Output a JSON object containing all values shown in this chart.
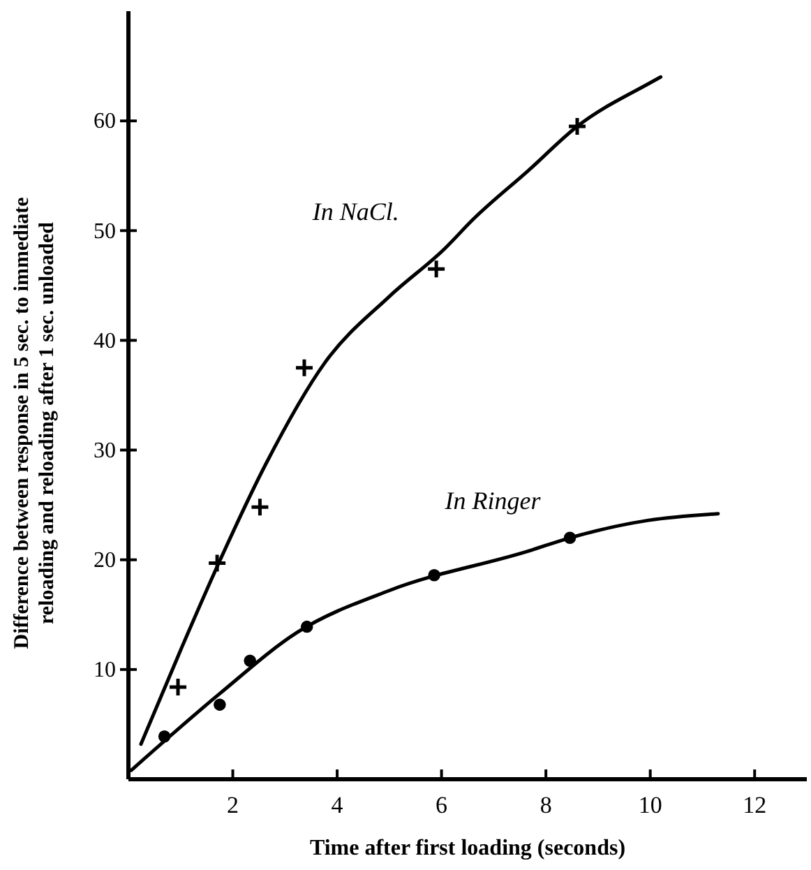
{
  "chart_data": {
    "type": "line",
    "xlabel": "Time after first loading (seconds)",
    "ylabel": "Difference between response in 5 sec. to immediate\nreloading and reloading after 1 sec. unloaded",
    "xlim": [
      0,
      13
    ],
    "ylim": [
      0,
      70
    ],
    "xticks": [
      2,
      4,
      6,
      8,
      10,
      12
    ],
    "yticks": [
      10,
      20,
      30,
      40,
      50,
      60
    ],
    "grid": false,
    "series": [
      {
        "name": "In NaCl.",
        "color": "#000000",
        "marker": "none",
        "x": [
          0.24,
          1.03,
          1.75,
          2.63,
          3.77,
          5.0,
          6.07,
          6.6,
          7.67,
          8.6,
          9.97,
          10.2
        ],
        "values": [
          3.2,
          12.1,
          19.9,
          28.7,
          38,
          44,
          48.4,
          51,
          55.5,
          59.5,
          63.4,
          64
        ]
      },
      {
        "type": "scatter",
        "color": "#000000",
        "marker": "cross",
        "x": [
          0.95,
          1.7,
          2.52,
          3.37,
          5.9,
          8.6
        ],
        "values": [
          8.4,
          19.7,
          24.8,
          37.5,
          46.5,
          59.5
        ]
      },
      {
        "name": "In Ringer",
        "color": "#000000",
        "marker": "none",
        "x": [
          0.05,
          1.75,
          3.24,
          5.0,
          7.67,
          8.46,
          9.97,
          11.3
        ],
        "values": [
          0.8,
          7.8,
          13.4,
          17.2,
          20.8,
          22.0,
          23.6,
          24.2
        ]
      },
      {
        "type": "scatter",
        "color": "#000000",
        "marker": "circle",
        "x": [
          0.69,
          1.75,
          2.33,
          3.42,
          5.86,
          8.46
        ],
        "values": [
          3.9,
          6.8,
          10.8,
          13.9,
          18.6,
          22.0
        ]
      }
    ]
  }
}
